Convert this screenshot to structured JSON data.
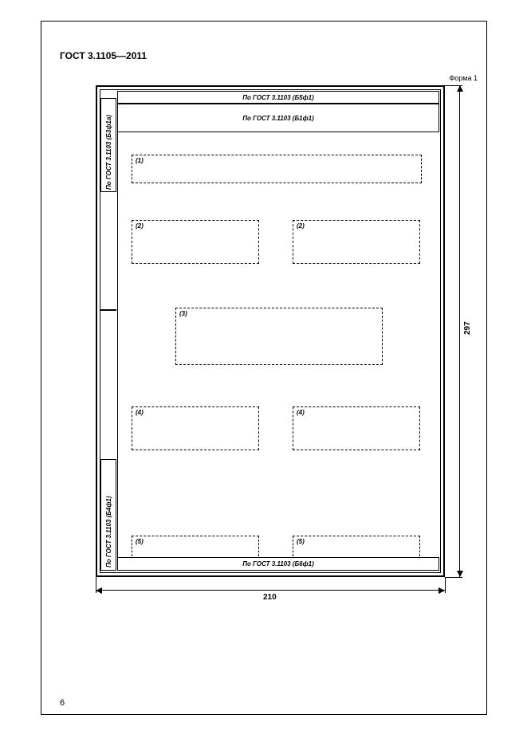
{
  "standard_header": "ГОСТ  3.1105—2011",
  "form_label": "Форма 1",
  "page_number": "6",
  "dimensions": {
    "width": "210",
    "height": "297"
  },
  "sidebar_top": "По ГОСТ 3.1103 (Б3ф1а)",
  "sidebar_bottom": "По ГОСТ 3.1103 (Б4ф1)",
  "strip1": "По ГОСТ 3.1103 (Б5ф1)",
  "strip2": "По ГОСТ 3.1103 (Б1ф1)",
  "strip_bottom": "По ГОСТ 3.1103 (Б6ф1)",
  "zones": {
    "z1": "(1)",
    "z2a": "(2)",
    "z2b": "(2)",
    "z3": "(3)",
    "z4a": "(4)",
    "z4b": "(4)",
    "z5a": "(5)",
    "z5b": "(5)"
  }
}
